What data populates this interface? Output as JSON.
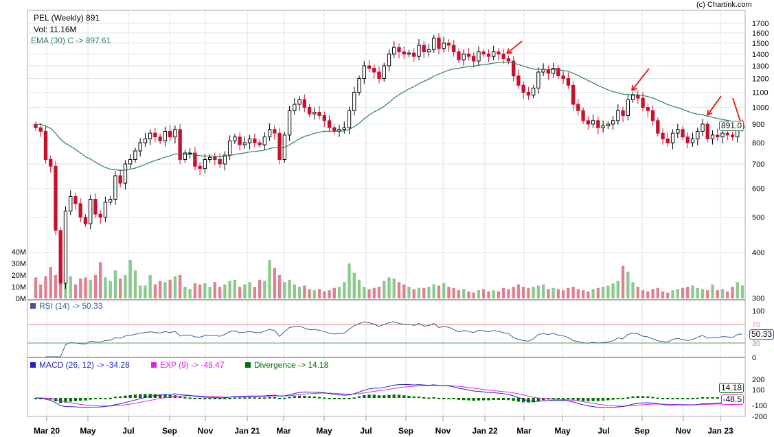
{
  "header": {
    "title": "PEL (Weekly) 891",
    "volume": "Vol: 11.16M",
    "ema": "EMA (30) C -> 897.61",
    "credit": "(c) Chartink.com"
  },
  "rsi": {
    "label": "RSI (14) -> 50.33",
    "badge": "50.33",
    "upper": "70",
    "lower": "30"
  },
  "macd": {
    "macd_label": "MACD (26, 12) -> -34.28",
    "exp_label": "EXP (9) -> -48.47",
    "div_label": "Divergence -> 14.18",
    "badge_div": "14.18",
    "badge_exp": "-48.5"
  },
  "price_badge": "891.0",
  "colors": {
    "up": "#ffffff",
    "down": "#c8102e",
    "ema": "#2e7d5b",
    "vol_up": "#8cc98c",
    "vol_down": "#e08090",
    "rsi": "#3c5a8c",
    "macd": "#2020d0",
    "exp": "#e020e0",
    "div": "#007000",
    "arrow": "#e8231b"
  },
  "chart_data": {
    "type": "candlestick",
    "scale": "log",
    "price_ticks": [
      "1700",
      "1600",
      "1500",
      "1400",
      "1300",
      "1200",
      "1100",
      "1000",
      "900",
      "800",
      "700",
      "600",
      "500",
      "400",
      "300"
    ],
    "volume_ticks": [
      "40M",
      "30M",
      "20M",
      "10M",
      "0M"
    ],
    "rsi_ticks": [
      "100",
      "70",
      "30",
      "0"
    ],
    "macd_ticks": [
      "200",
      "100",
      "-100",
      "-200"
    ],
    "x_ticks": [
      "Mar 20",
      "May",
      "Jul",
      "Sep",
      "Nov",
      "Jan 21",
      "Mar",
      "May",
      "Jul",
      "Sep",
      "Nov",
      "Jan 22",
      "Mar",
      "May",
      "Jul",
      "Sep",
      "Nov",
      "Jan 23"
    ],
    "closes": [
      880,
      860,
      720,
      690,
      460,
      330,
      520,
      570,
      545,
      500,
      480,
      560,
      510,
      500,
      550,
      560,
      650,
      620,
      700,
      720,
      760,
      800,
      820,
      850,
      830,
      810,
      860,
      830,
      870,
      720,
      750,
      750,
      690,
      680,
      720,
      730,
      720,
      700,
      740,
      810,
      830,
      790,
      800,
      820,
      800,
      790,
      830,
      870,
      850,
      720,
      840,
      980,
      1020,
      1050,
      1000,
      960,
      970,
      950,
      920,
      880,
      860,
      870,
      880,
      980,
      1100,
      1200,
      1300,
      1280,
      1250,
      1200,
      1300,
      1400,
      1460,
      1420,
      1400,
      1410,
      1380,
      1480,
      1420,
      1440,
      1550,
      1450,
      1500,
      1480,
      1420,
      1350,
      1400,
      1380,
      1340,
      1420,
      1400,
      1380,
      1420,
      1400,
      1360,
      1340,
      1220,
      1150,
      1100,
      1080,
      1130,
      1250,
      1270,
      1240,
      1280,
      1220,
      1200,
      1150,
      1020,
      980,
      920,
      900,
      920,
      880,
      890,
      900,
      920,
      980,
      950,
      1050,
      1080,
      1060,
      1000,
      980,
      920,
      850,
      820,
      800,
      850,
      870,
      830,
      800,
      820,
      860,
      900,
      820,
      840,
      830,
      850,
      840,
      830,
      880,
      891
    ],
    "volumes_m": [
      18,
      12,
      19,
      27,
      20,
      24,
      15,
      19,
      12,
      17,
      18,
      16,
      20,
      31,
      18,
      15,
      24,
      17,
      20,
      33,
      24,
      11,
      11,
      20,
      12,
      15,
      14,
      16,
      19,
      20,
      10,
      8,
      13,
      12,
      13,
      10,
      14,
      10,
      12,
      15,
      16,
      10,
      12,
      14,
      10,
      16,
      15,
      33,
      26,
      20,
      14,
      16,
      12,
      10,
      11,
      8,
      7,
      8,
      6,
      7,
      9,
      10,
      14,
      30,
      22,
      16,
      10,
      8,
      9,
      10,
      15,
      18,
      17,
      14,
      12,
      10,
      8,
      9,
      9,
      10,
      12,
      11,
      13,
      10,
      9,
      7,
      8,
      6,
      5,
      7,
      8,
      6,
      7,
      6,
      9,
      8,
      10,
      12,
      10,
      9,
      10,
      11,
      12,
      8,
      9,
      8,
      7,
      9,
      10,
      8,
      7,
      6,
      8,
      9,
      10,
      11,
      13,
      15,
      28,
      23,
      14,
      10,
      7,
      6,
      8,
      9,
      6,
      5,
      7,
      8,
      9,
      10,
      11,
      9,
      8,
      7,
      12,
      7,
      8,
      6,
      10,
      14,
      11.16
    ],
    "ema_period": 30,
    "rsi_period": 14,
    "macd_params": [
      26,
      12,
      9
    ]
  }
}
